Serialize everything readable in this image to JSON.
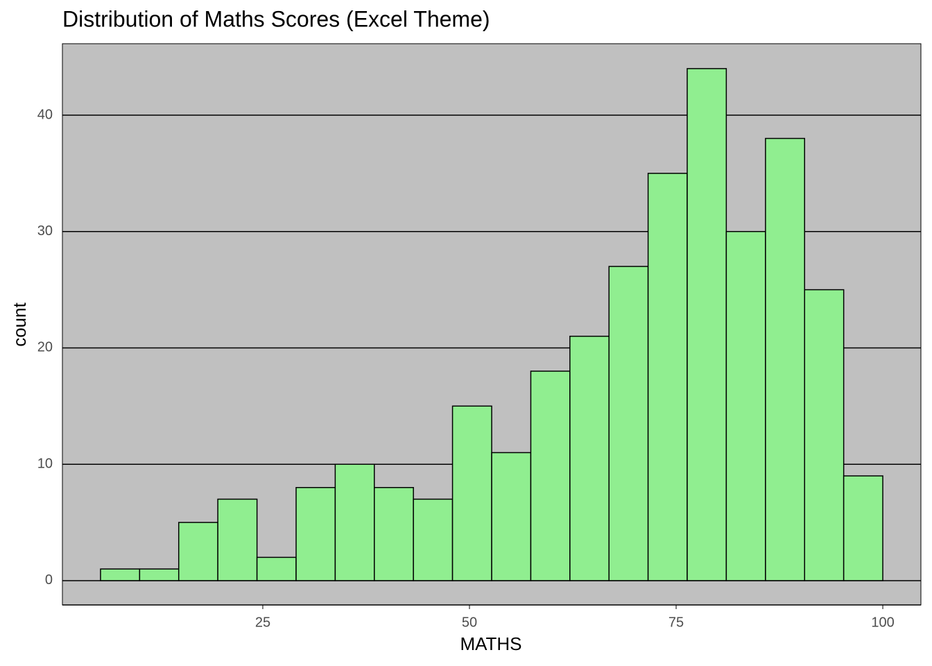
{
  "chart_data": {
    "type": "histogram",
    "title": "Distribution of Maths Scores (Excel Theme)",
    "x_label": "MATHS",
    "y_label": "count",
    "bins": [
      5.37,
      10.1,
      14.83,
      19.56,
      24.3,
      29.03,
      33.76,
      38.49,
      43.22,
      47.95,
      52.69,
      57.42,
      62.15,
      66.88,
      71.61,
      76.34,
      81.07,
      85.81,
      90.54,
      95.27,
      100
    ],
    "values": [
      1,
      1,
      5,
      7,
      2,
      8,
      10,
      8,
      7,
      15,
      11,
      18,
      21,
      27,
      35,
      44,
      30,
      38,
      25,
      9
    ],
    "color": "#90ee90",
    "edge_color": "#000000",
    "background": "#c0c0c0",
    "xlim": [
      0.76,
      104.61
    ],
    "ylim": [
      -2.09,
      46.14
    ],
    "xticks": [
      25,
      50,
      75,
      100
    ],
    "yticks": [
      0,
      10,
      20,
      30,
      40
    ],
    "grid": true
  }
}
